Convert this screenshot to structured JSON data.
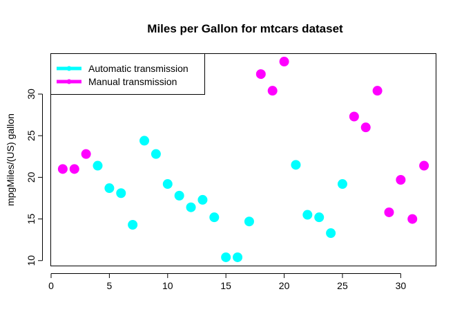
{
  "chart_data": {
    "type": "scatter",
    "title": "Miles per Gallon for mtcars dataset",
    "xlabel": "",
    "ylabel": "mpgMiles/(US) gallon",
    "xlim": [
      0,
      33
    ],
    "ylim": [
      9.4,
      34.9
    ],
    "x_ticks": [
      "0",
      "5",
      "10",
      "15",
      "20",
      "25",
      "30"
    ],
    "y_ticks": [
      "10",
      "15",
      "20",
      "25",
      "30"
    ],
    "grid": false,
    "legend_position": "top-left",
    "series": [
      {
        "name": "Automatic transmission",
        "color": "#00FFFF",
        "points": [
          {
            "x": 4,
            "y": 21.4
          },
          {
            "x": 5,
            "y": 18.7
          },
          {
            "x": 6,
            "y": 18.1
          },
          {
            "x": 7,
            "y": 14.3
          },
          {
            "x": 8,
            "y": 24.4
          },
          {
            "x": 9,
            "y": 22.8
          },
          {
            "x": 10,
            "y": 19.2
          },
          {
            "x": 11,
            "y": 17.8
          },
          {
            "x": 12,
            "y": 16.4
          },
          {
            "x": 13,
            "y": 17.3
          },
          {
            "x": 14,
            "y": 15.2
          },
          {
            "x": 15,
            "y": 10.4
          },
          {
            "x": 16,
            "y": 10.4
          },
          {
            "x": 17,
            "y": 14.7
          },
          {
            "x": 21,
            "y": 21.5
          },
          {
            "x": 22,
            "y": 15.5
          },
          {
            "x": 23,
            "y": 15.2
          },
          {
            "x": 24,
            "y": 13.3
          },
          {
            "x": 25,
            "y": 19.2
          }
        ]
      },
      {
        "name": "Manual transmission",
        "color": "#FF00FF",
        "points": [
          {
            "x": 1,
            "y": 21.0
          },
          {
            "x": 2,
            "y": 21.0
          },
          {
            "x": 3,
            "y": 22.8
          },
          {
            "x": 18,
            "y": 32.4
          },
          {
            "x": 19,
            "y": 30.4
          },
          {
            "x": 20,
            "y": 33.9
          },
          {
            "x": 26,
            "y": 27.3
          },
          {
            "x": 27,
            "y": 26.0
          },
          {
            "x": 28,
            "y": 30.4
          },
          {
            "x": 29,
            "y": 15.8
          },
          {
            "x": 30,
            "y": 19.7
          },
          {
            "x": 31,
            "y": 15.0
          },
          {
            "x": 32,
            "y": 21.4
          }
        ]
      }
    ]
  }
}
